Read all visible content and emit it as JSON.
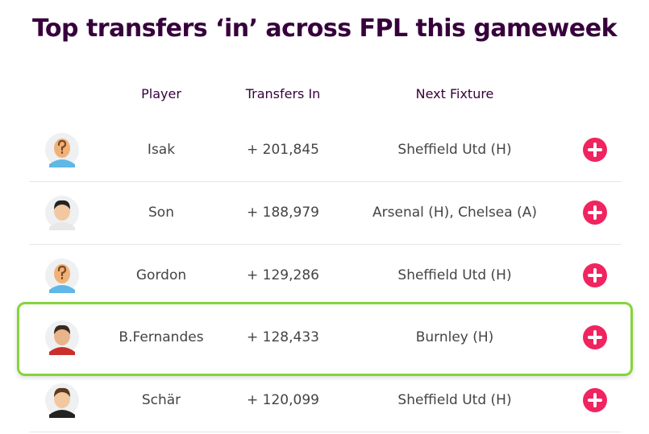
{
  "header": {
    "title": "Top transfers ‘in’ across FPL this gameweek"
  },
  "table": {
    "columns": [
      "Player",
      "Transfers In",
      "Next Fixture"
    ],
    "rows": [
      [
        "Isak",
        "+ 201,845",
        "Sheffield Utd (H)"
      ],
      [
        "Son",
        "+ 188,979",
        "Arsenal (H), Chelsea (A)"
      ],
      [
        "Gordon",
        "+ 129,286",
        "Sheffield Utd (H)"
      ],
      [
        "B.Fernandes",
        "+ 128,433",
        "Burnley (H)"
      ],
      [
        "Schär",
        "+ 120,099",
        "Sheffield Utd (H)"
      ]
    ]
  }
}
